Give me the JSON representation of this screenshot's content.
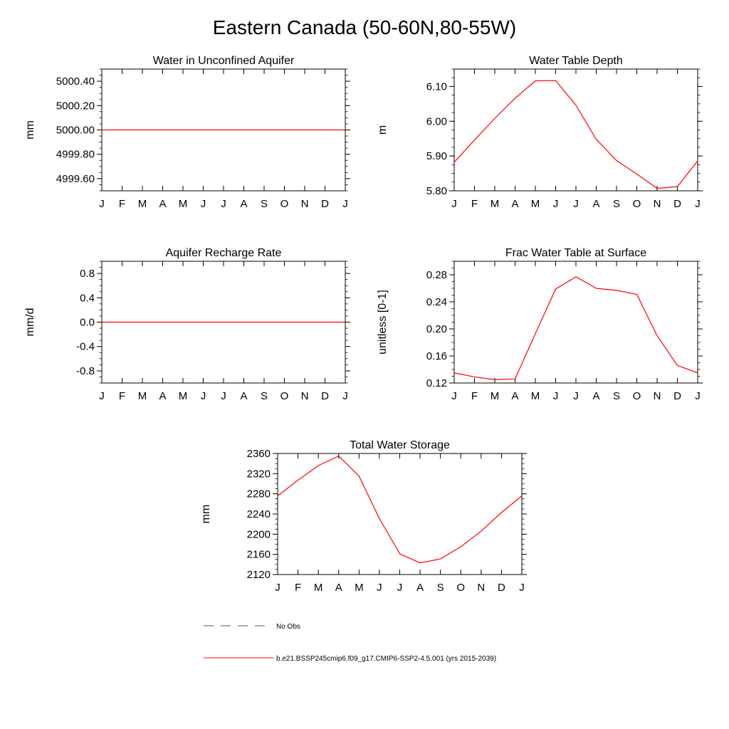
{
  "title": "Eastern Canada (50-60N,80-55W)",
  "months": [
    "J",
    "F",
    "M",
    "A",
    "M",
    "J",
    "J",
    "A",
    "S",
    "O",
    "N",
    "D",
    "J"
  ],
  "legend": {
    "obs_label": "No Obs",
    "model_label": "b.e21.BSSP245cmip6.f09_g17.CMIP6-SSP2-4.5.001 (yrs 2015-2039)",
    "obs_color": "#555555",
    "model_color": "#ff0000"
  },
  "chart_data": [
    {
      "type": "line",
      "title": "Water in Unconfined Aquifer",
      "xlabel": "",
      "ylabel": "mm",
      "ylim": [
        4999.5,
        5000.5
      ],
      "yticks": [
        4999.6,
        4999.8,
        5000.0,
        5000.2,
        5000.4
      ],
      "ytick_labels": [
        "4999.60",
        "4999.80",
        "5000.00",
        "5000.20",
        "5000.40"
      ],
      "series": [
        {
          "values": [
            5000,
            5000,
            5000,
            5000,
            5000,
            5000,
            5000,
            5000,
            5000,
            5000,
            5000,
            5000,
            5000
          ]
        }
      ]
    },
    {
      "type": "line",
      "title": "Water Table Depth",
      "xlabel": "",
      "ylabel": "m",
      "ylim": [
        5.8,
        6.15
      ],
      "yticks": [
        5.8,
        5.9,
        6.0,
        6.1
      ],
      "ytick_labels": [
        "5.80",
        "5.90",
        "6.00",
        "6.10"
      ],
      "series": [
        {
          "values": [
            5.882,
            5.946,
            6.008,
            6.066,
            6.116,
            6.117,
            6.046,
            5.948,
            5.887,
            5.848,
            5.807,
            5.812,
            5.886
          ]
        }
      ]
    },
    {
      "type": "line",
      "title": "Aquifer Recharge Rate",
      "xlabel": "",
      "ylabel": "mm/d",
      "ylim": [
        -1.0,
        1.0
      ],
      "yticks": [
        -0.8,
        -0.4,
        0.0,
        0.4,
        0.8
      ],
      "ytick_labels": [
        "-0.8",
        "-0.4",
        "0.0",
        "0.4",
        "0.8"
      ],
      "series": [
        {
          "values": [
            0,
            0,
            0,
            0,
            0,
            0,
            0,
            0,
            0,
            0,
            0,
            0,
            0
          ]
        }
      ]
    },
    {
      "type": "line",
      "title": "Frac Water Table at Surface",
      "xlabel": "",
      "ylabel": "unitless [0-1]",
      "ylim": [
        0.12,
        0.3
      ],
      "yticks": [
        0.12,
        0.16,
        0.2,
        0.24,
        0.28
      ],
      "ytick_labels": [
        "0.12",
        "0.16",
        "0.20",
        "0.24",
        "0.28"
      ],
      "series": [
        {
          "values": [
            0.135,
            0.129,
            0.125,
            0.126,
            0.193,
            0.259,
            0.277,
            0.26,
            0.257,
            0.251,
            0.19,
            0.146,
            0.135
          ]
        }
      ]
    },
    {
      "type": "line",
      "title": "Total Water Storage",
      "xlabel": "",
      "ylabel": "mm",
      "ylim": [
        2120,
        2360
      ],
      "yticks": [
        2120,
        2160,
        2200,
        2240,
        2280,
        2320,
        2360
      ],
      "ytick_labels": [
        "2120",
        "2160",
        "2200",
        "2240",
        "2280",
        "2320",
        "2360"
      ],
      "series": [
        {
          "values": [
            2276,
            2307,
            2336,
            2355,
            2315,
            2231,
            2161,
            2143,
            2151,
            2175,
            2206,
            2243,
            2276
          ]
        }
      ]
    }
  ]
}
